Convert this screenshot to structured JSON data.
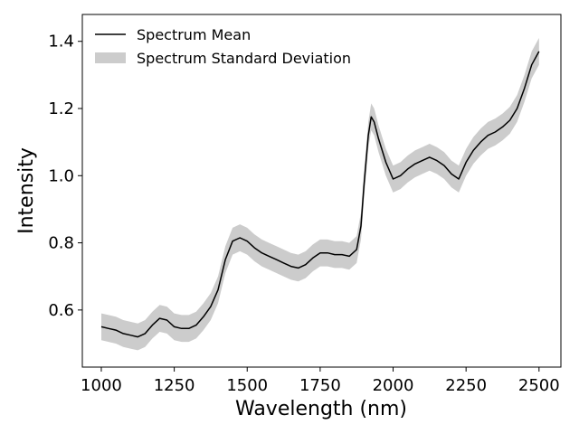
{
  "chart_data": {
    "type": "line",
    "xlabel": "Wavelength (nm)",
    "ylabel": "Intensity",
    "xlim": [
      935,
      2575
    ],
    "ylim": [
      0.43,
      1.48
    ],
    "xticks": [
      1000,
      1250,
      1500,
      1750,
      2000,
      2250,
      2500
    ],
    "xtick_labels": [
      "1000",
      "1250",
      "1500",
      "1750",
      "2000",
      "2250",
      "2500"
    ],
    "yticks": [
      0.6,
      0.8,
      1.0,
      1.2,
      1.4
    ],
    "ytick_labels": [
      "0.6",
      "0.8",
      "1.0",
      "1.2",
      "1.4"
    ],
    "grid": false,
    "legend_position": "top-left",
    "colors": {
      "mean": "#000000",
      "band": "#cccccc"
    },
    "series": [
      {
        "name": "Spectrum Mean",
        "kind": "line",
        "x": [
          1000,
          1025,
          1050,
          1075,
          1100,
          1125,
          1150,
          1175,
          1200,
          1225,
          1250,
          1275,
          1300,
          1325,
          1350,
          1375,
          1400,
          1425,
          1450,
          1475,
          1500,
          1525,
          1550,
          1575,
          1600,
          1625,
          1650,
          1675,
          1700,
          1725,
          1750,
          1775,
          1800,
          1825,
          1850,
          1875,
          1890,
          1900,
          1915,
          1925,
          1935,
          1950,
          1975,
          2000,
          2025,
          2050,
          2075,
          2100,
          2125,
          2150,
          2175,
          2200,
          2225,
          2250,
          2275,
          2300,
          2325,
          2350,
          2375,
          2400,
          2425,
          2450,
          2475,
          2500
        ],
        "y": [
          0.55,
          0.545,
          0.54,
          0.53,
          0.525,
          0.52,
          0.53,
          0.555,
          0.575,
          0.57,
          0.55,
          0.545,
          0.545,
          0.555,
          0.58,
          0.61,
          0.66,
          0.75,
          0.805,
          0.815,
          0.805,
          0.785,
          0.77,
          0.76,
          0.75,
          0.74,
          0.73,
          0.725,
          0.735,
          0.755,
          0.77,
          0.77,
          0.765,
          0.765,
          0.76,
          0.78,
          0.85,
          0.97,
          1.12,
          1.175,
          1.16,
          1.11,
          1.04,
          0.99,
          1.0,
          1.02,
          1.035,
          1.045,
          1.055,
          1.045,
          1.03,
          1.005,
          0.99,
          1.04,
          1.075,
          1.1,
          1.12,
          1.13,
          1.145,
          1.165,
          1.2,
          1.26,
          1.33,
          1.37
        ]
      },
      {
        "name": "Spectrum Standard Deviation",
        "kind": "band",
        "half_width": 0.04
      }
    ]
  }
}
